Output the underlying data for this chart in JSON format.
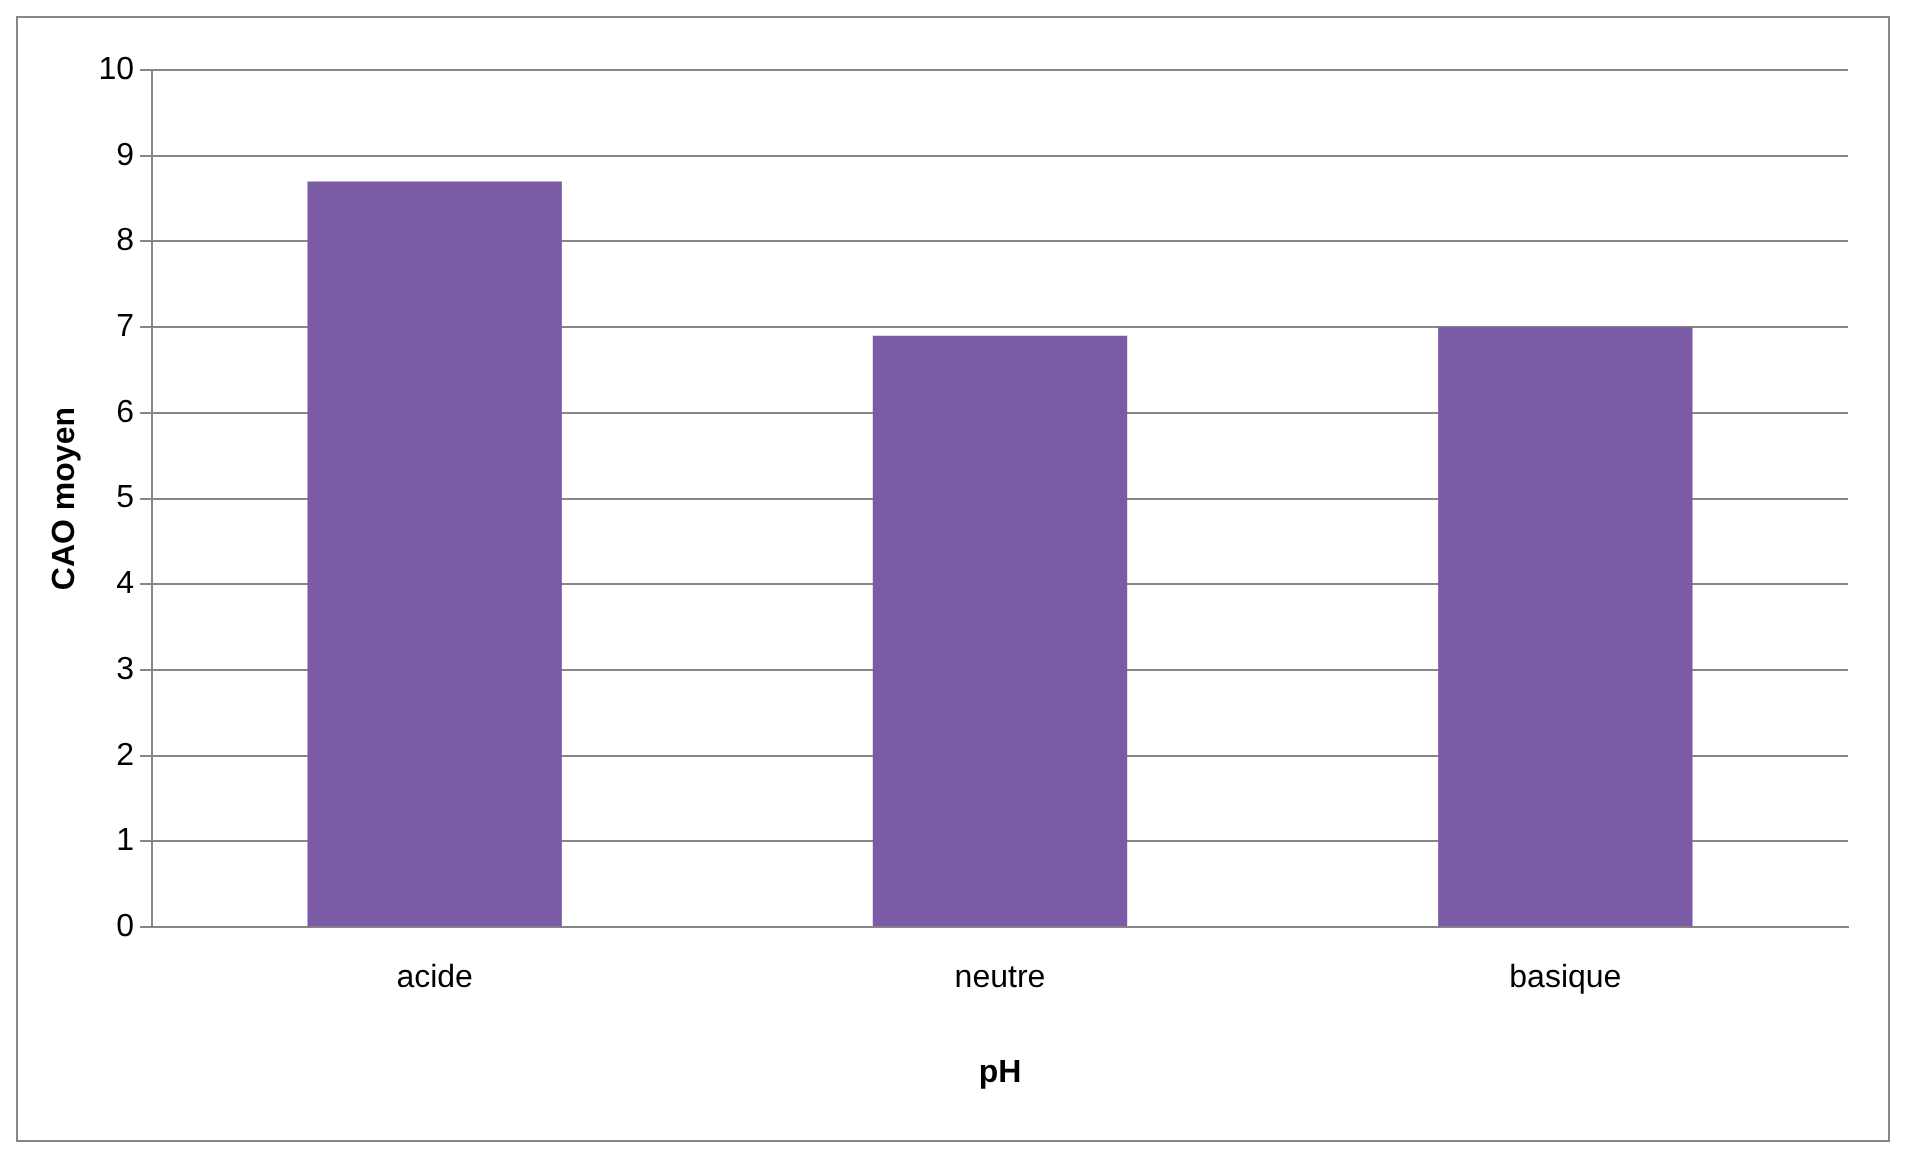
{
  "chart_data": {
    "type": "bar",
    "xlabel": "pH",
    "ylabel": "CAO moyen",
    "categories": [
      "acide",
      "neutre",
      "basique"
    ],
    "values": [
      8.7,
      6.9,
      7.0
    ],
    "color": "#7b5aa6",
    "ylim": [
      0,
      10
    ],
    "yticks": [
      0,
      1,
      2,
      3,
      4,
      5,
      6,
      7,
      8,
      9,
      10
    ],
    "grid": "y",
    "legend": false
  }
}
